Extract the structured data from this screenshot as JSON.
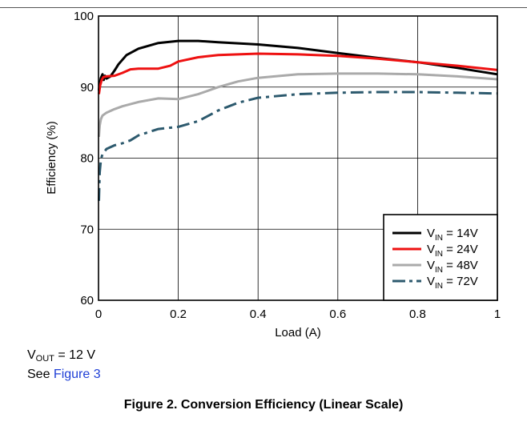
{
  "chart_data": {
    "type": "line",
    "xlabel": "Load (A)",
    "ylabel": "Efficiency (%)",
    "xlim": [
      0,
      1
    ],
    "ylim": [
      60,
      100
    ],
    "xticks": [
      "0",
      "0.2",
      "0.4",
      "0.6",
      "0.8",
      "1"
    ],
    "yticks": [
      "60",
      "70",
      "80",
      "90",
      "100"
    ],
    "grid": true,
    "legend_position": "bottom-right",
    "series": [
      {
        "name": "VIN = 14V",
        "legend_main": "V",
        "legend_sub": "IN",
        "legend_rest": " = 14V",
        "color": "#000000",
        "dash": "solid",
        "points": [
          [
            0.001,
            89.5
          ],
          [
            0.003,
            90.5
          ],
          [
            0.006,
            91.3
          ],
          [
            0.01,
            91.8
          ],
          [
            0.013,
            91.0
          ],
          [
            0.016,
            91.6
          ],
          [
            0.02,
            91.2
          ],
          [
            0.03,
            91.5
          ],
          [
            0.04,
            92.3
          ],
          [
            0.05,
            93.2
          ],
          [
            0.07,
            94.5
          ],
          [
            0.1,
            95.4
          ],
          [
            0.15,
            96.2
          ],
          [
            0.2,
            96.5
          ],
          [
            0.25,
            96.5
          ],
          [
            0.3,
            96.3
          ],
          [
            0.4,
            96.0
          ],
          [
            0.5,
            95.5
          ],
          [
            0.6,
            94.8
          ],
          [
            0.7,
            94.1
          ],
          [
            0.8,
            93.5
          ],
          [
            0.9,
            92.7
          ],
          [
            1.0,
            91.8
          ]
        ]
      },
      {
        "name": "VIN = 24V",
        "legend_main": "V",
        "legend_sub": "IN",
        "legend_rest": " = 24V",
        "color": "#ee1111",
        "dash": "solid",
        "points": [
          [
            0.001,
            89.0
          ],
          [
            0.004,
            90.2
          ],
          [
            0.008,
            91.0
          ],
          [
            0.012,
            91.4
          ],
          [
            0.02,
            91.5
          ],
          [
            0.04,
            91.6
          ],
          [
            0.06,
            92.0
          ],
          [
            0.08,
            92.5
          ],
          [
            0.1,
            92.6
          ],
          [
            0.15,
            92.6
          ],
          [
            0.18,
            93.0
          ],
          [
            0.2,
            93.6
          ],
          [
            0.25,
            94.2
          ],
          [
            0.3,
            94.5
          ],
          [
            0.4,
            94.7
          ],
          [
            0.5,
            94.6
          ],
          [
            0.6,
            94.4
          ],
          [
            0.7,
            94.0
          ],
          [
            0.8,
            93.5
          ],
          [
            0.9,
            93.0
          ],
          [
            1.0,
            92.4
          ]
        ]
      },
      {
        "name": "VIN = 48V",
        "legend_main": "V",
        "legend_sub": "IN",
        "legend_rest": " = 48V",
        "color": "#aaaaaa",
        "dash": "solid",
        "points": [
          [
            0.001,
            83.0
          ],
          [
            0.003,
            84.6
          ],
          [
            0.006,
            85.5
          ],
          [
            0.01,
            86.0
          ],
          [
            0.02,
            86.4
          ],
          [
            0.04,
            86.9
          ],
          [
            0.06,
            87.3
          ],
          [
            0.08,
            87.6
          ],
          [
            0.1,
            87.9
          ],
          [
            0.15,
            88.4
          ],
          [
            0.2,
            88.3
          ],
          [
            0.25,
            89.0
          ],
          [
            0.3,
            90.0
          ],
          [
            0.35,
            90.8
          ],
          [
            0.4,
            91.3
          ],
          [
            0.5,
            91.8
          ],
          [
            0.6,
            91.9
          ],
          [
            0.7,
            91.9
          ],
          [
            0.8,
            91.8
          ],
          [
            0.9,
            91.5
          ],
          [
            1.0,
            91.1
          ]
        ]
      },
      {
        "name": "VIN = 72V",
        "legend_main": "V",
        "legend_sub": "IN",
        "legend_rest": " = 72V",
        "color": "#2d5a6e",
        "dash": "dashdot",
        "points": [
          [
            0.001,
            74.0
          ],
          [
            0.003,
            78.0
          ],
          [
            0.006,
            79.8
          ],
          [
            0.01,
            80.6
          ],
          [
            0.02,
            81.3
          ],
          [
            0.04,
            81.8
          ],
          [
            0.06,
            82.1
          ],
          [
            0.08,
            82.5
          ],
          [
            0.1,
            83.2
          ],
          [
            0.15,
            84.1
          ],
          [
            0.2,
            84.4
          ],
          [
            0.25,
            85.2
          ],
          [
            0.3,
            86.7
          ],
          [
            0.35,
            87.8
          ],
          [
            0.4,
            88.5
          ],
          [
            0.5,
            89.0
          ],
          [
            0.6,
            89.2
          ],
          [
            0.7,
            89.3
          ],
          [
            0.8,
            89.3
          ],
          [
            0.9,
            89.2
          ],
          [
            1.0,
            89.1
          ]
        ]
      }
    ]
  },
  "note": {
    "vout_main": "V",
    "vout_sub": "OUT",
    "vout_rest": " = 12 V",
    "see_prefix": "See ",
    "see_link": "Figure 3"
  },
  "caption": "Figure 2. Conversion Efficiency (Linear Scale)"
}
